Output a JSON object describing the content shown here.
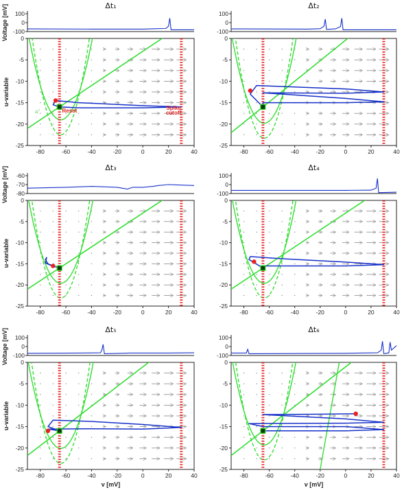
{
  "chart_data": [
    {
      "type": "line",
      "panel": "t1",
      "title": "Δt₁",
      "voltage": {
        "ylabel": "Voltage [mV]",
        "yticks": [
          "100",
          "0",
          "-100"
        ],
        "ylim": [
          -100,
          100
        ],
        "trace": [
          [
            -90,
            -70
          ],
          [
            -40,
            -72
          ],
          [
            0,
            -72
          ],
          [
            10,
            -68
          ],
          [
            18,
            -65
          ],
          [
            20,
            -40
          ],
          [
            21,
            50
          ],
          [
            22,
            -80
          ],
          [
            40,
            -80
          ]
        ]
      },
      "phase": {
        "xlabel": "",
        "ylabel": "u-variable",
        "xlim": [
          -90,
          40
        ],
        "ylim": [
          -25,
          0
        ],
        "xticks": [
          "-80",
          "-60",
          "-40",
          "-20",
          "0",
          "20",
          "40"
        ],
        "yticks": [
          "0",
          "-5",
          "-10",
          "-15",
          "-20",
          "-25"
        ],
        "reset": -65,
        "cutoff": 30,
        "v_nullcline_shift": 0,
        "u_nullcline_slope": 0.2,
        "trajectory": [
          [
            -65,
            -16
          ],
          [
            -70,
            -15.5
          ],
          [
            -68,
            -14.5
          ],
          [
            -50,
            -15
          ],
          [
            0,
            -15.7
          ],
          [
            30,
            -16
          ],
          [
            0,
            -16.2
          ],
          [
            -50,
            -16.2
          ],
          [
            -65,
            -16
          ]
        ],
        "point": [
          -68,
          -14.5
        ],
        "fixed": [
          -65,
          -16
        ]
      },
      "annotations": {
        "reset": "Reset",
        "cutoff_line1": "Spike",
        "cutoff_line2": "cutoff",
        "u_label": "u'"
      }
    },
    {
      "type": "line",
      "panel": "t2",
      "title": "Δt₂",
      "voltage": {
        "ylabel": "",
        "yticks": [
          "100",
          "0",
          "-100"
        ],
        "ylim": [
          -100,
          100
        ],
        "trace": [
          [
            -90,
            -70
          ],
          [
            -30,
            -72
          ],
          [
            -20,
            -68
          ],
          [
            -17,
            -40
          ],
          [
            -16,
            40
          ],
          [
            -15,
            -75
          ],
          [
            -8,
            -70
          ],
          [
            -4,
            -45
          ],
          [
            -3,
            50
          ],
          [
            -2,
            -80
          ],
          [
            40,
            -80
          ]
        ]
      },
      "phase": {
        "xlabel": "",
        "ylabel": "",
        "xlim": [
          -90,
          40
        ],
        "ylim": [
          -25,
          0
        ],
        "xticks": [
          "-80",
          "-60",
          "-40",
          "-20",
          "0",
          "20",
          "40"
        ],
        "yticks": [
          "0",
          "-5",
          "-10",
          "-15",
          "-20",
          "-25"
        ],
        "reset": -65,
        "cutoff": 30,
        "v_nullcline_shift": 0.8,
        "u_nullcline_slope": 0.24,
        "trajectory": [
          [
            -65,
            -16
          ],
          [
            -75,
            -13
          ],
          [
            -70,
            -11
          ],
          [
            0,
            -11.8
          ],
          [
            30,
            -12.5
          ],
          [
            0,
            -12.8
          ],
          [
            -65,
            -12.7
          ],
          [
            0,
            -14
          ],
          [
            30,
            -14.8
          ],
          [
            0,
            -15
          ],
          [
            -65,
            -15
          ],
          [
            -65,
            -16
          ]
        ],
        "point": [
          -75,
          -12.2
        ],
        "fixed": [
          -65,
          -16
        ]
      }
    },
    {
      "type": "line",
      "panel": "t3",
      "title": "Δt₃",
      "voltage": {
        "ylabel": "Voltage [mV]",
        "yticks": [
          "-60",
          "-70",
          "-80"
        ],
        "ylim": [
          -80,
          -60
        ],
        "trace": [
          [
            -90,
            -74
          ],
          [
            -60,
            -73
          ],
          [
            -40,
            -72
          ],
          [
            -20,
            -73
          ],
          [
            -12,
            -75
          ],
          [
            -8,
            -73
          ],
          [
            0,
            -73
          ],
          [
            8,
            -72
          ],
          [
            12,
            -71
          ],
          [
            20,
            -70
          ],
          [
            40,
            -71
          ]
        ]
      },
      "phase": {
        "xlabel": "",
        "ylabel": "u-variable",
        "xlim": [
          -90,
          40
        ],
        "ylim": [
          -25,
          0
        ],
        "xticks": [
          "-80",
          "-60",
          "-40",
          "-20",
          "0",
          "20",
          "40"
        ],
        "yticks": [
          "0",
          "-5",
          "-10",
          "-15",
          "-20",
          "-25"
        ],
        "reset": -65,
        "cutoff": 30,
        "v_nullcline_shift": 0.6,
        "u_nullcline_slope": 0.2,
        "trajectory": [
          [
            -65,
            -16
          ],
          [
            -70,
            -15.5
          ],
          [
            -74,
            -15
          ],
          [
            -76,
            -14
          ],
          [
            -75,
            -13.5
          ],
          [
            -76,
            -14.8
          ],
          [
            -70,
            -15.6
          ]
        ],
        "point": [
          -70,
          -15.5
        ],
        "fixed": [
          -65,
          -16
        ]
      }
    },
    {
      "type": "line",
      "panel": "t4",
      "title": "Δt₄",
      "voltage": {
        "ylabel": "",
        "yticks": [
          "100",
          "0",
          "-100"
        ],
        "ylim": [
          -100,
          100
        ],
        "trace": [
          [
            -90,
            -65
          ],
          [
            0,
            -65
          ],
          [
            20,
            -62
          ],
          [
            24,
            -40
          ],
          [
            25,
            70
          ],
          [
            26,
            -90
          ],
          [
            40,
            -85
          ]
        ]
      },
      "phase": {
        "xlabel": "",
        "ylabel": "",
        "xlim": [
          -90,
          40
        ],
        "ylim": [
          -25,
          0
        ],
        "xticks": [
          "-80",
          "-60",
          "-40",
          "-20",
          "0",
          "20",
          "40"
        ],
        "yticks": [
          "0",
          "-5",
          "-10",
          "-15",
          "-20",
          "-25"
        ],
        "reset": -65,
        "cutoff": 30,
        "v_nullcline_shift": 0.6,
        "u_nullcline_slope": 0.2,
        "trajectory": [
          [
            -65,
            -16
          ],
          [
            -76,
            -14
          ],
          [
            -75,
            -13.3
          ],
          [
            -50,
            -13.8
          ],
          [
            0,
            -14.6
          ],
          [
            30,
            -15.2
          ],
          [
            0,
            -15.5
          ],
          [
            -65,
            -15.5
          ],
          [
            -65,
            -16
          ]
        ],
        "point": [
          -72,
          -14.5
        ],
        "fixed": [
          -65,
          -16
        ]
      }
    },
    {
      "type": "line",
      "panel": "t5",
      "title": "Δt₅",
      "voltage": {
        "ylabel": "Voltage [mV]",
        "yticks": [
          "100",
          "0",
          "-100"
        ],
        "ylim": [
          -100,
          100
        ],
        "trace": [
          [
            -90,
            -75
          ],
          [
            -50,
            -72
          ],
          [
            -33,
            -70
          ],
          [
            -32,
            -40
          ],
          [
            -31,
            25
          ],
          [
            -30,
            -80
          ],
          [
            -10,
            -72
          ],
          [
            20,
            -72
          ],
          [
            40,
            -70
          ]
        ]
      },
      "phase": {
        "xlabel": "v [mV]",
        "ylabel": "u-variable",
        "xlim": [
          -90,
          40
        ],
        "ylim": [
          -25,
          0
        ],
        "xticks": [
          "-80",
          "-60",
          "-40",
          "-20",
          "0",
          "20",
          "40"
        ],
        "yticks": [
          "0",
          "-5",
          "-10",
          "-15",
          "-20",
          "-25"
        ],
        "reset": -65,
        "cutoff": 30,
        "v_nullcline_shift": 1.1,
        "u_nullcline_slope": 0.23,
        "trajectory": [
          [
            -65,
            -16
          ],
          [
            -74,
            -15
          ],
          [
            -70,
            -13.5
          ],
          [
            -40,
            -13.8
          ],
          [
            0,
            -14.5
          ],
          [
            30,
            -15.2
          ],
          [
            0,
            -15.6
          ],
          [
            -40,
            -15.5
          ],
          [
            -74,
            -15.6
          ],
          [
            -65,
            -16
          ]
        ],
        "point": [
          -74,
          -16
        ],
        "fixed": [
          -65,
          -16
        ]
      }
    },
    {
      "type": "line",
      "panel": "t6",
      "title": "Δt₆",
      "voltage": {
        "ylabel": "",
        "yticks": [
          "100",
          "0",
          "-100"
        ],
        "ylim": [
          -100,
          100
        ],
        "trace": [
          [
            -90,
            -72
          ],
          [
            -78,
            -72
          ],
          [
            -77,
            -30
          ],
          [
            -76,
            -80
          ],
          [
            0,
            -75
          ],
          [
            25,
            -70
          ],
          [
            28,
            -40
          ],
          [
            29,
            60
          ],
          [
            30,
            -80
          ],
          [
            34,
            -70
          ],
          [
            35,
            50
          ],
          [
            36,
            -40
          ],
          [
            40,
            10
          ]
        ]
      },
      "phase": {
        "xlabel": "v [mV]",
        "ylabel": "",
        "xlim": [
          -90,
          40
        ],
        "ylim": [
          -25,
          0
        ],
        "xticks": [
          "-80",
          "-60",
          "-40",
          "-20",
          "0",
          "20",
          "40"
        ],
        "yticks": [
          "0",
          "-5",
          "-10",
          "-15",
          "-20",
          "-25"
        ],
        "reset": -65,
        "cutoff": 30,
        "v_nullcline_shift": 0.3,
        "u_nullcline_slope": 0.23,
        "steep_line": [
          [
            -20,
            -25
          ],
          [
            -5,
            0
          ]
        ],
        "trajectory": [
          [
            8,
            -12
          ],
          [
            -20,
            -12.1
          ],
          [
            -65,
            -12.2
          ],
          [
            0,
            -13.2
          ],
          [
            30,
            -14
          ],
          [
            0,
            -14.2
          ],
          [
            -76,
            -14.3
          ],
          [
            -65,
            -15
          ],
          [
            0,
            -15
          ],
          [
            30,
            -15.7
          ],
          [
            0,
            -16
          ],
          [
            -65,
            -16
          ]
        ],
        "point": [
          8,
          -12
        ],
        "fixed": [
          -65,
          -16
        ]
      }
    }
  ],
  "colors": {
    "trace": "#1530c8",
    "nullcline": "#33dd33",
    "reset": "#e82020",
    "arrow": "#8a8a8a",
    "axis": "#222222"
  }
}
